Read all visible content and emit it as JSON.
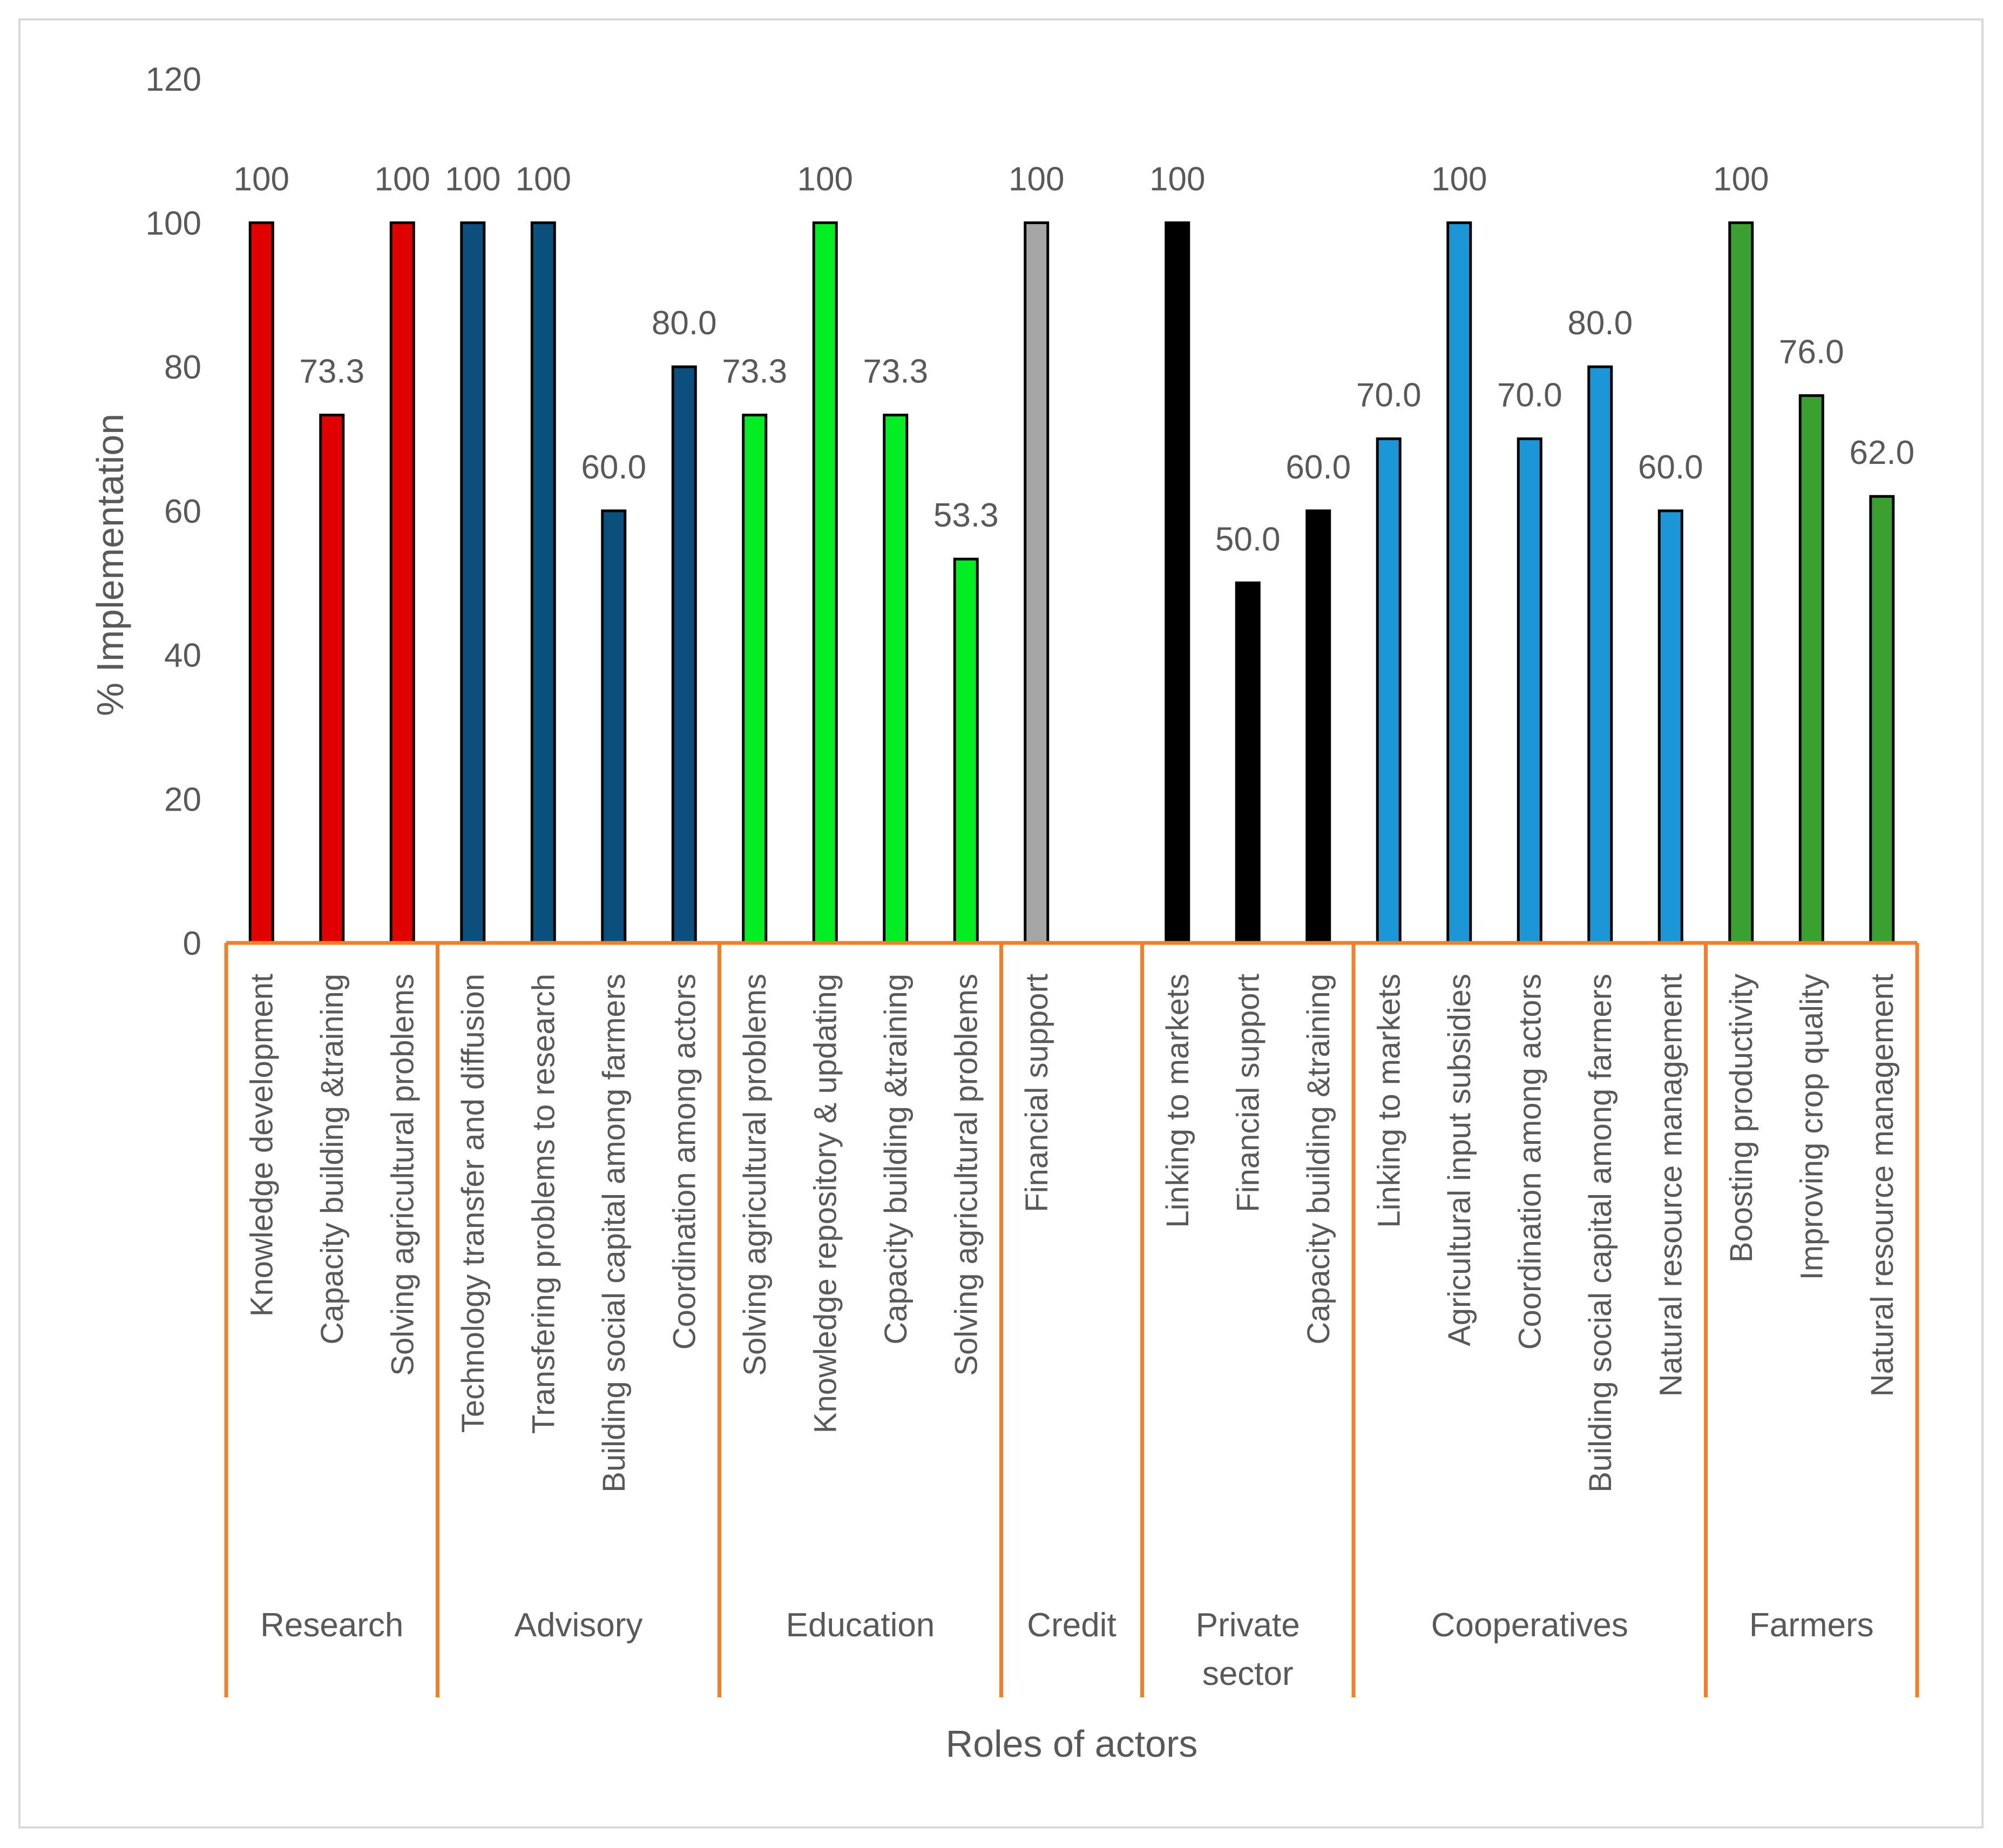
{
  "chart_data": {
    "type": "bar",
    "title": "",
    "xlabel": "Roles of actors",
    "ylabel": "% Implementation",
    "ylim": [
      0,
      120
    ],
    "yticks": [
      0,
      20,
      40,
      60,
      80,
      100,
      120
    ],
    "grid": false,
    "groups": [
      {
        "name": "Research",
        "color": "#e00000",
        "items": [
          {
            "label": "Knowledge development",
            "value": 100,
            "value_label": "100"
          },
          {
            "label": "Capacity building &training",
            "value": 73.3,
            "value_label": "73.3"
          },
          {
            "label": "Solving agricultural problems",
            "value": 100,
            "value_label": "100"
          }
        ]
      },
      {
        "name": "Advisory",
        "color": "#0b4f7c",
        "items": [
          {
            "label": "Technology transfer and diffusion",
            "value": 100,
            "value_label": "100"
          },
          {
            "label": "Transfering problems to research",
            "value": 100,
            "value_label": "100"
          },
          {
            "label": "Building social capital among farmers",
            "value": 60.0,
            "value_label": "60.0"
          },
          {
            "label": "Coordination among actors",
            "value": 80.0,
            "value_label": "80.0"
          }
        ]
      },
      {
        "name": "Education",
        "color": "#00ee22",
        "items": [
          {
            "label": "Solving agricultural problems",
            "value": 73.3,
            "value_label": "73.3"
          },
          {
            "label": "Knowledge repository & updating",
            "value": 100,
            "value_label": "100"
          },
          {
            "label": "Capacity building &training",
            "value": 73.3,
            "value_label": "73.3"
          },
          {
            "label": "Solving agricultural problems",
            "value": 53.3,
            "value_label": "53.3"
          }
        ]
      },
      {
        "name": "Credit",
        "color": "#a6a6a6",
        "items": [
          {
            "label": "Financial support",
            "value": 100,
            "value_label": "100"
          }
        ]
      },
      {
        "name": "Private sector",
        "name_lines": [
          "Private",
          "sector"
        ],
        "color": "#000000",
        "items": [
          {
            "label": "Linking to markets",
            "value": 100,
            "value_label": "100"
          },
          {
            "label": "Financial support",
            "value": 50.0,
            "value_label": "50.0"
          },
          {
            "label": "Capacity building &training",
            "value": 60.0,
            "value_label": "60.0"
          }
        ]
      },
      {
        "name": "Cooperatives",
        "color": "#1b96d6",
        "items": [
          {
            "label": "Linking to markets",
            "value": 70.0,
            "value_label": "70.0"
          },
          {
            "label": "Agricultural input subsidies",
            "value": 100,
            "value_label": "100"
          },
          {
            "label": "Coordination among actors",
            "value": 70.0,
            "value_label": "70.0"
          },
          {
            "label": "Building social capital among farmers",
            "value": 80.0,
            "value_label": "80.0"
          },
          {
            "label": "Natural resource management",
            "value": 60.0,
            "value_label": "60.0"
          }
        ]
      },
      {
        "name": "Farmers",
        "color": "#3aa030",
        "items": [
          {
            "label": "Boosting productivity",
            "value": 100,
            "value_label": "100"
          },
          {
            "label": "Improving crop quality",
            "value": 76.0,
            "value_label": "76.0"
          },
          {
            "label": "Natural resource management",
            "value": 62.0,
            "value_label": "62.0"
          }
        ]
      }
    ],
    "group_separator_color": "#f07f2a"
  }
}
